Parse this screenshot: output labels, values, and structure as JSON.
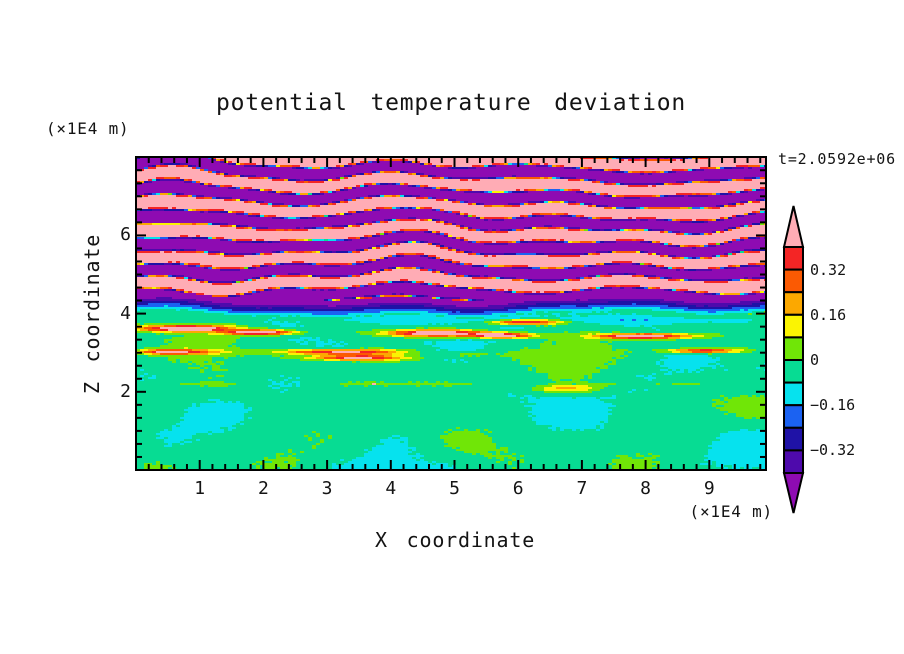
{
  "chart_data": {
    "type": "heatmap",
    "title": "potential temperature deviation",
    "time_annotation": "t=2.0592e+06",
    "xlabel": "X coordinate",
    "x_unit": "(×1E4 m)",
    "ylabel": "Z coordinate",
    "y_unit": "(×1E4 m)",
    "x_range": [
      0,
      9.89
    ],
    "z_range": [
      0,
      8.0
    ],
    "x_ticks": [
      "1",
      "2",
      "3",
      "4",
      "5",
      "6",
      "7",
      "8",
      "9"
    ],
    "x_tick_values": [
      1,
      2,
      3,
      4,
      5,
      6,
      7,
      8,
      9
    ],
    "x_minor_step": 0.2,
    "z_ticks": [
      "2",
      "4",
      "6"
    ],
    "z_tick_values": [
      2,
      4,
      6
    ],
    "z_minor_step": 0.3333,
    "grid": false,
    "colorbar": {
      "orientation": "vertical-right",
      "levels": [
        -0.4,
        -0.32,
        -0.24,
        -0.16,
        -0.08,
        0,
        0.08,
        0.16,
        0.24,
        0.32,
        0.4
      ],
      "tick_labels": [
        "0.32",
        "0.16",
        "0",
        "−0.16",
        "−0.32"
      ],
      "tick_values": [
        0.32,
        0.16,
        0,
        -0.16,
        -0.32
      ],
      "colors_low_to_high": [
        "#8E0BB2",
        "#4E0AAC",
        "#1F12A6",
        "#1B62F2",
        "#06E2EE",
        "#07DC93",
        "#70E607",
        "#FBF402",
        "#FCA800",
        "#FB5A03",
        "#F42525",
        "#FFACB5"
      ]
    },
    "description": "Vertical cross-section of potential temperature deviation: stratified wavy pink/purple gravity-wave bands above z≈4.4 with thin rainbow fringes, a navy/cyan shear layer near z≈4.1, and a near-zero lower layer (spring-green with chartreuse blobs) containing warm pink/red lens streaks near z≈3.0–3.6 and a thin perturbed line at z≈2.2.",
    "synthesis": {
      "interface": {
        "base": 3.98,
        "terms": [
          [
            0.07,
            0.7,
            2.1
          ],
          [
            0.05,
            1.9,
            0.4
          ],
          [
            0.03,
            3.3,
            0.0
          ]
        ]
      },
      "wave": {
        "offset": 0.45,
        "wavelength": 0.64,
        "amplitude": 0.58,
        "sharpen": 0.32,
        "noise": 0.06,
        "phase_terms": [
          [
            1.35,
            0.52,
            0.3,
            1.2
          ],
          [
            0.85,
            1.21,
            -0.52,
            2.4
          ],
          [
            0.5,
            2.33,
            1.05,
            0.7
          ],
          [
            0.3,
            3.7,
            -2.1,
            0.3
          ]
        ]
      },
      "lower": {
        "base": -0.045,
        "noise": 0.018,
        "blob_terms": [
          [
            0.045,
            1.05,
            0.4,
            2.3,
            1.1
          ],
          [
            0.035,
            2.2,
            2.3,
            1.4,
            0.6
          ],
          [
            0.03,
            0.6,
            1.9,
            3.1,
            2.8
          ],
          [
            0.02,
            3.4,
            0.2,
            4.3,
            1.5
          ]
        ],
        "streaks": [
          {
            "z": 3.02,
            "sz": 0.05,
            "amp": 0.5,
            "x0": 0.1,
            "x1": 4.6,
            "r": 0.4,
            "base": 0.55,
            "swing": 0.45,
            "freq": 2.2,
            "phase": 0.8
          },
          {
            "z": 2.95,
            "sz": 0.05,
            "amp": 0.22,
            "x0": 5.0,
            "x1": 6.2,
            "r": 0.3,
            "base": 0.6,
            "swing": 0.4,
            "freq": 3.0,
            "phase": 0.0
          },
          {
            "z": 2.2,
            "sz": 0.04,
            "amp": 0.07,
            "x0": 0.4,
            "x1": 9.9,
            "r": 0.5,
            "base": 0.45,
            "swing": 0.55,
            "freq": 1.7,
            "phase": 0.5
          }
        ],
        "lenses": [
          [
            0.75,
            3.62,
            0.5,
            0.06,
            0.62
          ],
          [
            1.95,
            3.52,
            0.38,
            0.05,
            0.58
          ],
          [
            4.7,
            3.5,
            0.55,
            0.065,
            0.62
          ],
          [
            5.75,
            3.44,
            0.33,
            0.05,
            0.55
          ],
          [
            7.95,
            3.42,
            0.5,
            0.05,
            0.6
          ],
          [
            3.45,
            2.87,
            0.5,
            0.05,
            0.5
          ],
          [
            6.1,
            3.78,
            0.4,
            0.05,
            0.5
          ],
          [
            8.9,
            3.05,
            0.4,
            0.045,
            0.45
          ],
          [
            6.75,
            2.08,
            0.38,
            0.07,
            0.22
          ]
        ],
        "dips": [
          {
            "z": 3.86,
            "sz": 0.08,
            "amp": 0.085,
            "x0": 3.3,
            "x1": 6.0
          },
          {
            "z": 3.82,
            "sz": 0.07,
            "amp": 0.09,
            "x0": 6.6,
            "x1": 9.9
          },
          {
            "z": 3.6,
            "sz": 0.05,
            "amp": 0.06,
            "x0": 8.3,
            "x1": 9.9
          }
        ],
        "dot_streak": {
          "z": 2.2,
          "half": 0.05,
          "threshold": 0.955,
          "scale": 1.3
        }
      }
    }
  },
  "frame": {
    "stroke": "#000000",
    "background": "#FFFFFF"
  }
}
